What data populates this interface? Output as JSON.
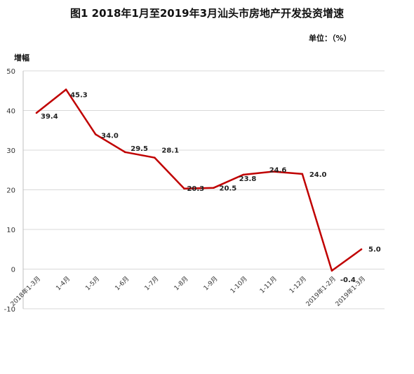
{
  "chart_data": {
    "type": "line",
    "title": "图1  2018年1月至2019年3月汕头市房地产开发投资增速",
    "unit_label": "单位：（%）",
    "ylabel": "增幅",
    "xlabel": "",
    "categories": [
      "2018年1-3月",
      "1-4月",
      "1-5月",
      "1-6月",
      "1-7月",
      "1-8月",
      "1-9月",
      "1-10月",
      "1-11月",
      "1-12月",
      "2019年1-2月",
      "2019年1-3月"
    ],
    "values": [
      39.4,
      45.3,
      34.0,
      29.5,
      28.1,
      20.3,
      20.5,
      23.8,
      24.6,
      24.0,
      -0.4,
      5.0
    ],
    "data_labels": [
      "39.4",
      "45.3",
      "34.0",
      "29.5",
      "28.1",
      "20.3",
      "20.5",
      "23.8",
      "24.6",
      "24.0",
      "-0.4",
      "5.0"
    ],
    "ylim": [
      -10,
      50
    ],
    "yticks": [
      50,
      40,
      30,
      20,
      10,
      0,
      -10
    ],
    "ytick_labels": [
      "50",
      "40",
      "30",
      "20",
      "10",
      "0",
      "-10"
    ],
    "grid": true,
    "line_color": "#C00000",
    "grid_color": "#D9D9D9"
  }
}
